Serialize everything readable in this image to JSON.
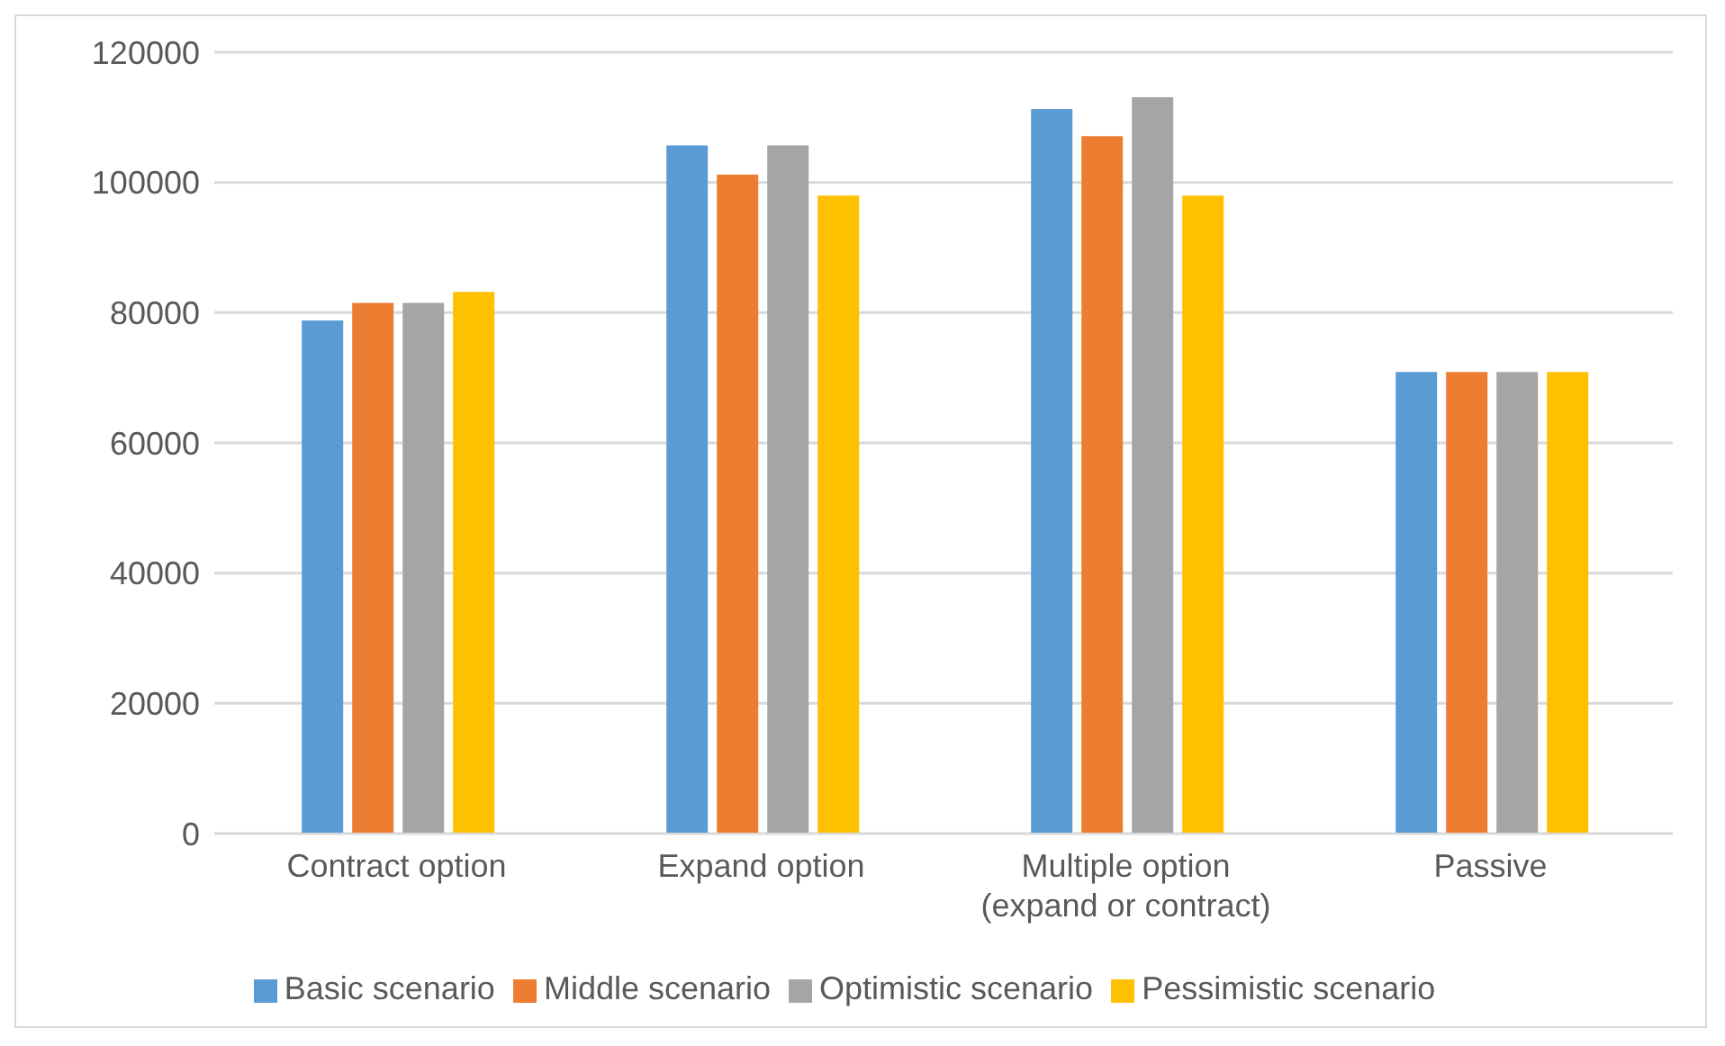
{
  "chart_data": {
    "type": "bar",
    "categories": [
      "Contract option",
      "Expand option",
      "Multiple option\n(expand or contract)",
      "Passive"
    ],
    "series": [
      {
        "name": "Basic scenario",
        "color": "#5b9bd5",
        "values": [
          78800,
          105700,
          111300,
          70900
        ]
      },
      {
        "name": "Middle scenario",
        "color": "#ed7d31",
        "values": [
          81500,
          101200,
          107100,
          70900
        ]
      },
      {
        "name": "Optimistic scenario",
        "color": "#a5a5a5",
        "values": [
          81500,
          105700,
          113100,
          70900
        ]
      },
      {
        "name": "Pessimistic scenario",
        "color": "#ffc000",
        "values": [
          83200,
          98000,
          98000,
          70900
        ]
      }
    ],
    "ylim": [
      0,
      120000
    ],
    "yticks": [
      0,
      20000,
      40000,
      60000,
      80000,
      100000,
      120000
    ],
    "grid": "y",
    "legend": "bottom"
  }
}
